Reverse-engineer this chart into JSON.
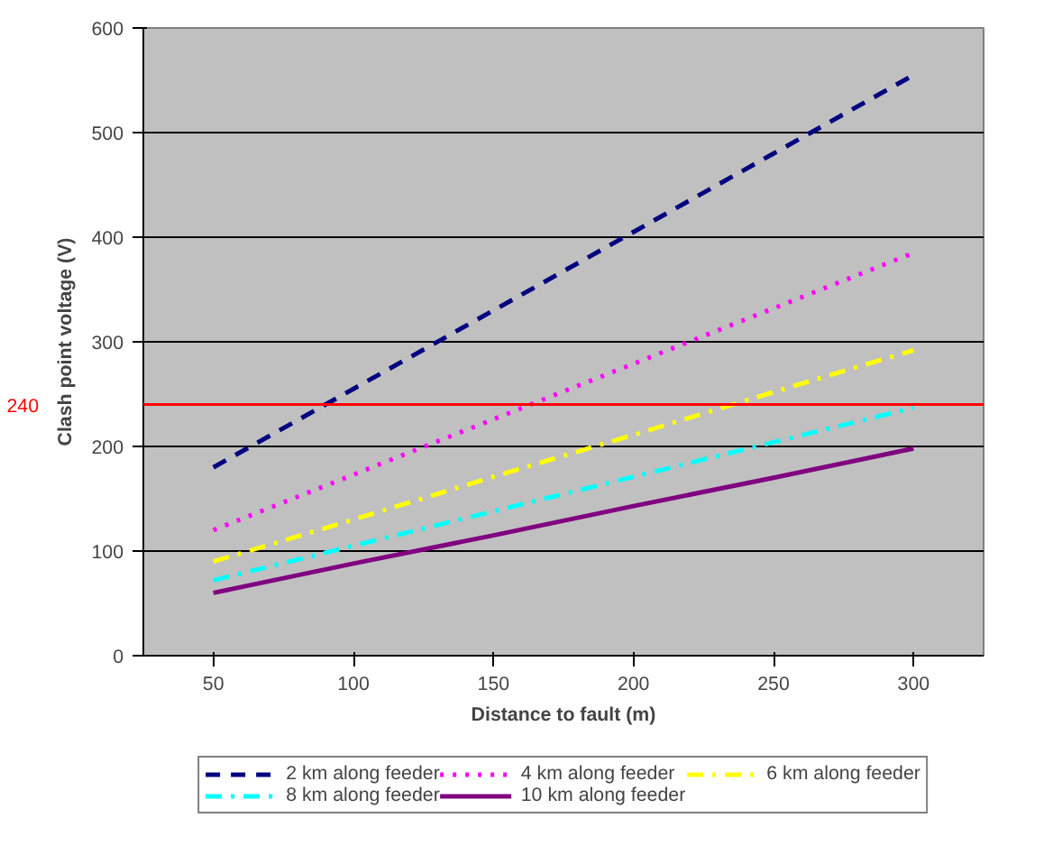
{
  "chart_data": {
    "type": "line",
    "xlabel": "Distance to fault (m)",
    "ylabel": "Clash point voltage (V)",
    "categories": [
      "50",
      "100",
      "150",
      "200",
      "250",
      "300"
    ],
    "ylim": [
      0,
      600
    ],
    "yticks": [
      0,
      100,
      200,
      300,
      400,
      500,
      600
    ],
    "grid": "y",
    "legend": "bottom",
    "marker": "none",
    "series": [
      {
        "name": "2 km along feeder",
        "color": "#000080",
        "line_style": "dashed",
        "values": [
          180,
          255,
          330,
          405,
          480,
          555
        ]
      },
      {
        "name": "4 km along feeder",
        "color": "#ff00ff",
        "line_style": "dotted",
        "values": [
          120,
          173,
          226,
          279,
          332,
          385
        ]
      },
      {
        "name": "6 km along feeder",
        "color": "#ffff00",
        "line_style": "dashdot",
        "values": [
          90,
          130,
          171,
          211,
          252,
          292
        ]
      },
      {
        "name": "8 km along feeder",
        "color": "#00ffff",
        "line_style": "dashdot",
        "values": [
          72,
          105,
          138,
          171,
          204,
          237
        ]
      },
      {
        "name": "10 km along feeder",
        "color": "#800080",
        "line_style": "solid",
        "values": [
          60,
          88,
          115,
          143,
          170,
          198
        ]
      }
    ],
    "ref_lines": [
      {
        "axis": "y",
        "value": 240,
        "label": "240",
        "color": "#ff0000"
      }
    ]
  }
}
